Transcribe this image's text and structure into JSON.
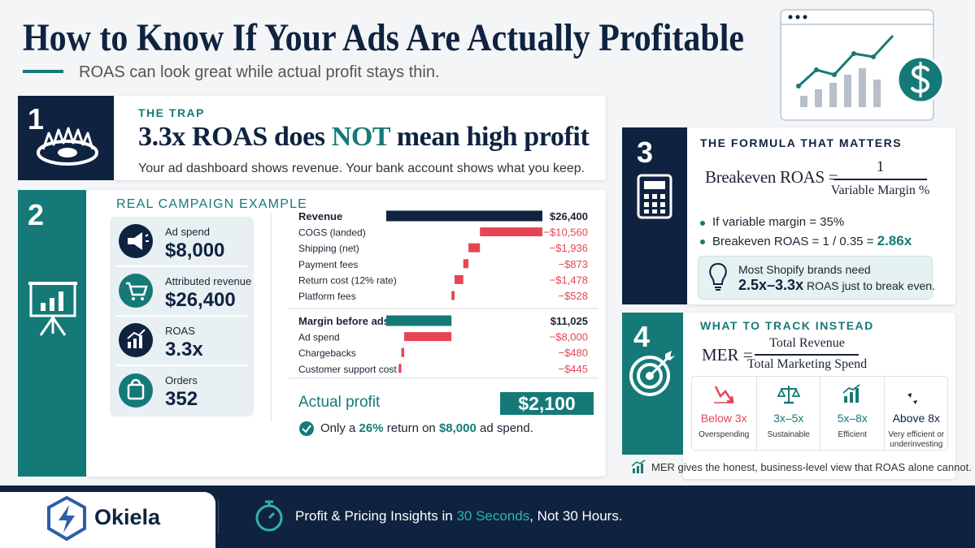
{
  "header": {
    "title": "How to Know If Your Ads Are Actually Profitable",
    "subtitle": "ROAS can look great while actual profit stays thin."
  },
  "trap": {
    "number": "1",
    "label": "THE TRAP",
    "headline": [
      "3.3x ROAS does",
      "NOT",
      "mean high profit"
    ],
    "text": "Your ad dashboard shows revenue. Your bank account shows what you keep."
  },
  "example": {
    "number": "2",
    "label": "REAL CAMPAIGN EXAMPLE",
    "metrics": [
      {
        "label": "Ad spend",
        "value": "$8,000"
      },
      {
        "label": "Attributed revenue",
        "value": "$26,400"
      },
      {
        "label": "ROAS",
        "value": "3.3x"
      },
      {
        "label": "Orders",
        "value": "352"
      }
    ],
    "waterfall": {
      "colors": {
        "total": "#0f2340",
        "subtotal": "#157a77",
        "cost": "#e64553"
      },
      "groups": [
        [
          {
            "label": "Revenue",
            "value": 26400,
            "value_label": "$26,400"
          },
          {
            "label": "COGS (landed)",
            "value": -10560,
            "value_label": "−$10,560"
          },
          {
            "label": "Shipping (net)",
            "value": -1936,
            "value_label": "−$1,936"
          },
          {
            "label": "Payment fees",
            "value": -873,
            "value_label": "−$873"
          },
          {
            "label": "Return cost (12% rate)",
            "value": -1478,
            "value_label": "−$1,478"
          },
          {
            "label": "Platform fees",
            "value": -528,
            "value_label": "−$528"
          }
        ],
        [
          {
            "label": "Margin before ads",
            "value": 11025,
            "value_label": "$11,025"
          },
          {
            "label": "Ad spend",
            "value": -8000,
            "value_label": "−$8,000"
          },
          {
            "label": "Chargebacks",
            "value": -480,
            "value_label": "−$480"
          },
          {
            "label": "Customer support cost",
            "value": -445,
            "value_label": "−$445"
          }
        ]
      ]
    },
    "profit": {
      "label": "Actual profit",
      "value": 2100,
      "value_label": "$2,100"
    },
    "note": [
      "Only a",
      "26%",
      "return on",
      "$8,000",
      "ad spend."
    ]
  },
  "formula": {
    "number": "3",
    "label": "THE FORMULA THAT MATTERS",
    "lhs": "Breakeven ROAS =",
    "numerator": "1",
    "denominator": "Variable Margin %",
    "bullets": [
      [
        "If variable margin = 35%"
      ],
      [
        "Breakeven ROAS = 1 / 0.35 =",
        "2.86x"
      ]
    ],
    "callout": [
      "Most Shopify brands need",
      "2.5x–3.3x",
      "ROAS just to break even."
    ]
  },
  "track": {
    "number": "4",
    "label": "WHAT TO TRACK INSTEAD",
    "lhs": "MER =",
    "numerator": "Total Revenue",
    "denominator": "Total Marketing Spend",
    "tiers": [
      {
        "range": "Below 3x",
        "description": "Overspending",
        "color": "#e64553"
      },
      {
        "range": "3x–5x",
        "description": "Sustainable",
        "color": "#157a77"
      },
      {
        "range": "5x–8x",
        "description": "Efficient",
        "color": "#157a77"
      },
      {
        "range": "Above 8x",
        "description": "Very efficient or underinvesting",
        "color": "#0f2340"
      }
    ],
    "note": "MER gives the honest, business-level view that ROAS alone cannot."
  },
  "footer": {
    "brand": "Okiela",
    "tagline": [
      "Profit & Pricing Insights in",
      "30 Seconds",
      ", Not 30 Hours."
    ]
  }
}
